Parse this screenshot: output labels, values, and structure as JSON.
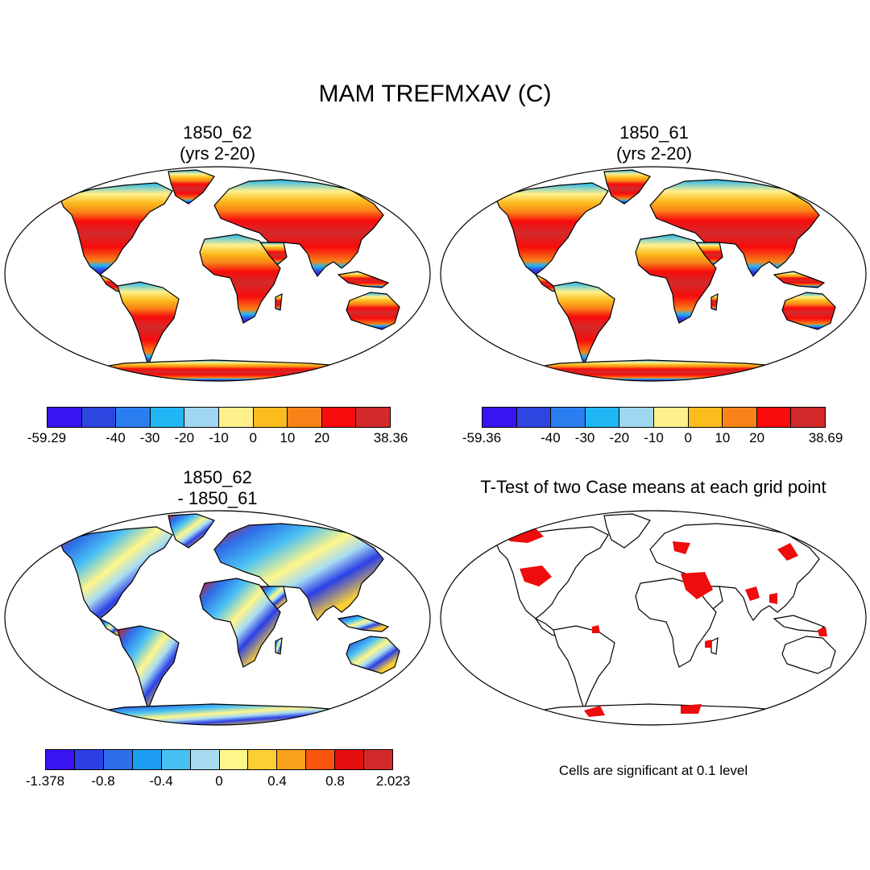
{
  "title": "MAM TREFMXAV (C)",
  "panels": [
    {
      "id": "p1",
      "title_lines": [
        "1850_62",
        "(yrs 2-20)"
      ],
      "colorbar": {
        "colors": [
          "#3a14f0",
          "#2e46e0",
          "#2b7ef0",
          "#20b6f4",
          "#a0d6f0",
          "#fff08c",
          "#fbbc1e",
          "#f98318",
          "#f80c0c",
          "#d22a2a"
        ],
        "labels": [
          "-59.29",
          "-40",
          "-30",
          "-20",
          "-10",
          "0",
          "10",
          "20",
          "38.36"
        ]
      }
    },
    {
      "id": "p2",
      "title_lines": [
        "1850_61",
        "(yrs 2-20)"
      ],
      "colorbar": {
        "colors": [
          "#3a14f0",
          "#2e46e0",
          "#2b7ef0",
          "#20b6f4",
          "#a0d6f0",
          "#fff08c",
          "#fbbc1e",
          "#f98318",
          "#f80c0c",
          "#d22a2a"
        ],
        "labels": [
          "-59.36",
          "-40",
          "-30",
          "-20",
          "-10",
          "0",
          "10",
          "20",
          "38.69"
        ]
      }
    },
    {
      "id": "p3",
      "title_lines": [
        "1850_62",
        "- 1850_61"
      ],
      "colorbar": {
        "colors": [
          "#3a14f0",
          "#2c40e6",
          "#2e6ee8",
          "#1e9ef2",
          "#48c0f4",
          "#a8dcf2",
          "#fff68a",
          "#fcd034",
          "#fca21a",
          "#f8560e",
          "#e60e0e",
          "#d22a2a"
        ],
        "labels": [
          "-1.378",
          "-0.8",
          "-0.4",
          "0",
          "0.4",
          "0.8",
          "2.023"
        ]
      }
    },
    {
      "id": "p4",
      "title_lines": [
        "T-Test of two Case means at each grid point"
      ],
      "note": "Cells are significant at 0.1 level"
    }
  ]
}
